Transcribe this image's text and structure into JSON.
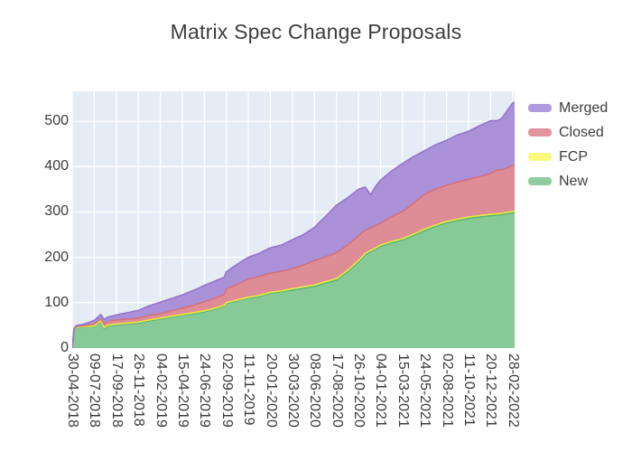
{
  "title": "Matrix Spec Change Proposals",
  "legend": {
    "items": [
      {
        "label": "Merged",
        "color": "#b09ade"
      },
      {
        "label": "Closed",
        "color": "#e2939c"
      },
      {
        "label": "FCP",
        "color": "#f9f97e"
      },
      {
        "label": "New",
        "color": "#8ecd9f"
      }
    ]
  },
  "chart_data": {
    "type": "area",
    "stacked": true,
    "title": "Matrix Spec Change Proposals",
    "xlabel": "",
    "ylabel": "",
    "plot_background": "#e5ecf6",
    "grid_color": "#ffffff",
    "grid": true,
    "legend_position": "right-top",
    "y_ticks": [
      0,
      100,
      200,
      300,
      400,
      500
    ],
    "ylim": [
      0,
      566
    ],
    "x_tick_labels": [
      "30-04-2018",
      "09-07-2018",
      "17-09-2018",
      "26-11-2018",
      "04-02-2019",
      "15-04-2019",
      "24-06-2019",
      "02-09-2019",
      "11-11-2019",
      "20-01-2020",
      "30-03-2020",
      "08-06-2020",
      "17-08-2020",
      "26-10-2020",
      "04-01-2021",
      "15-03-2021",
      "24-05-2021",
      "02-08-2021",
      "11-10-2021",
      "20-12-2021",
      "28-02-2022"
    ],
    "x_units": [
      0,
      0.08,
      0.2,
      0.5,
      1,
      1.3,
      1.45,
      1.6,
      2,
      2.5,
      3,
      3.5,
      4,
      4.5,
      5,
      5.5,
      6,
      6.5,
      6.9,
      7,
      7.5,
      8,
      8.5,
      9,
      9.5,
      10,
      10.5,
      11,
      11.5,
      12,
      12.5,
      13,
      13.3,
      13.55,
      13.8,
      14,
      14.5,
      15,
      15.5,
      16,
      16.5,
      17,
      17.5,
      18,
      18.5,
      19,
      19.3,
      19.5,
      20,
      20.1
    ],
    "series": [
      {
        "name": "New",
        "fill": "#87c997",
        "line": "#55b476",
        "values": [
          0,
          40,
          45,
          46,
          48,
          58,
          43,
          48,
          51,
          53,
          55,
          60,
          64,
          68,
          72,
          76,
          80,
          86,
          92,
          98,
          104,
          110,
          114,
          121,
          124,
          128,
          132,
          136,
          143,
          150,
          168,
          190,
          205,
          212,
          218,
          224,
          232,
          238,
          248,
          259,
          268,
          276,
          281,
          286,
          289,
          292,
          293,
          294,
          298,
          299
        ]
      },
      {
        "name": "FCP",
        "fill": "#f6f662",
        "line": "#e9e93e",
        "values": [
          0,
          1,
          1,
          1,
          1,
          2,
          2,
          2,
          2,
          2,
          2,
          2,
          2,
          2,
          2,
          2,
          2,
          2,
          2,
          2,
          2,
          2,
          2,
          2,
          2,
          3,
          3,
          3,
          3,
          3,
          3,
          3,
          3,
          3,
          3,
          3,
          3,
          3,
          3,
          3,
          3,
          3,
          3,
          3,
          3,
          3,
          3,
          3,
          3,
          3
        ]
      },
      {
        "name": "Closed",
        "fill": "#de8d96",
        "line": "#d4707e",
        "values": [
          0,
          1,
          2,
          2,
          4,
          4,
          8,
          8,
          9,
          9,
          9,
          10,
          10,
          12,
          14,
          16,
          20,
          22,
          24,
          30,
          35,
          40,
          42,
          42,
          43,
          44,
          48,
          54,
          55,
          57,
          56,
          55,
          52,
          50,
          49,
          48,
          55,
          60,
          68,
          77,
          79,
          80,
          82,
          83,
          86,
          90,
          97,
          95,
          101,
          103
        ]
      },
      {
        "name": "Merged",
        "fill": "#aa91d8",
        "line": "#9574cb",
        "values": [
          0,
          1,
          2,
          3,
          8,
          10,
          10,
          10,
          11,
          14,
          17,
          21,
          25,
          27,
          29,
          33,
          36,
          38,
          38,
          38,
          44,
          48,
          51,
          56,
          58,
          64,
          67,
          73,
          89,
          105,
          104,
          102,
          95,
          73,
          88,
          95,
          100,
          106,
          103,
          96,
          98,
          99,
          104,
          106,
          112,
          116,
          108,
          114,
          138,
          137
        ]
      }
    ]
  }
}
